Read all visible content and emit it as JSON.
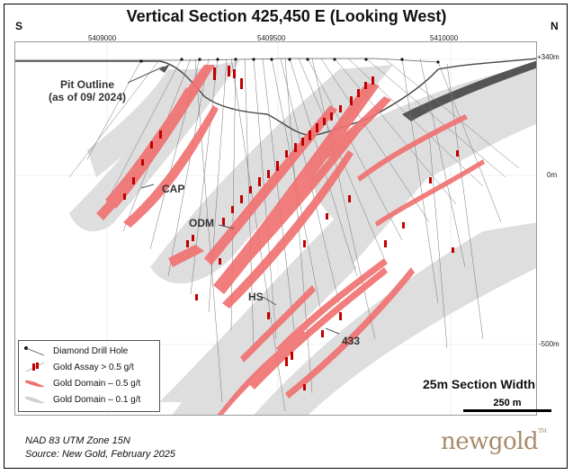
{
  "title": "Vertical Section 425,450 E (Looking West)",
  "orientation": {
    "left": "S",
    "right": "N"
  },
  "northing_ticks": [
    "5409000",
    "5409500",
    "5410000"
  ],
  "elevation_ticks": [
    "+340m",
    "0m",
    "-500m"
  ],
  "pit_label_line1": "Pit Outline",
  "pit_label_line2": "(as of 09/ 2024)",
  "zone_labels": {
    "cap": "CAP",
    "odm": "ODM",
    "hs": "HS",
    "z433": "433"
  },
  "legend": {
    "drill_hole": "Diamond Drill Hole",
    "gold_assay": "Gold Assay > 0.5 g/t",
    "domain_05": "Gold Domain – 0.5 g/t",
    "domain_01": "Gold Domain – 0.1 g/t"
  },
  "section_width": "25m Section Width",
  "scale_label": "250 m",
  "footer_line1": "NAD 83 UTM Zone 15N",
  "footer_line2": "Source: New Gold, February 2025",
  "logo_text": "newgold",
  "logo_mark": "TM",
  "colors": {
    "domain_01": "#d9d9d9",
    "domain_05": "#f07070",
    "assay": "#c00000",
    "drill": "#555555",
    "pit": "#444444",
    "logo": "#a78a6a"
  }
}
